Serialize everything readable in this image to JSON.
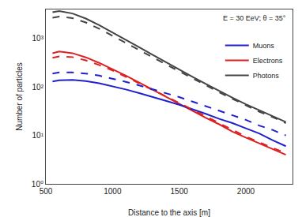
{
  "chart_data": {
    "type": "line",
    "xlabel": "Distance to the axis [m]",
    "ylabel": "Number of particles",
    "annotation": "E = 30 EeV; θ = 35°",
    "log": "y",
    "grid": false,
    "legend": "upper right",
    "xlim": [
      500,
      2350
    ],
    "xticks": [
      500,
      1000,
      1500,
      2000
    ],
    "ylim": [
      1,
      4000
    ],
    "yticks": [
      {
        "value": 1,
        "label": "10⁰"
      },
      {
        "value": 10,
        "label": "10¹"
      },
      {
        "value": 100,
        "label": "10²"
      },
      {
        "value": 1000,
        "label": "10³"
      }
    ],
    "x": [
      550,
      600,
      700,
      800,
      900,
      1000,
      1100,
      1200,
      1300,
      1400,
      1500,
      1600,
      1700,
      1800,
      1900,
      2000,
      2100,
      2200,
      2300
    ],
    "series": [
      {
        "name": "Photons",
        "color": "#444444",
        "line_style": "solid",
        "values": [
          3500,
          3700,
          3300,
          2600,
          1900,
          1350,
          950,
          665,
          465,
          325,
          230,
          163,
          116,
          83,
          60,
          44,
          33,
          25,
          19
        ]
      },
      {
        "name": "Electrons",
        "color": "#dd2020",
        "line_style": "solid",
        "values": [
          500,
          540,
          500,
          410,
          315,
          235,
          172,
          124,
          88,
          63,
          45,
          32,
          23,
          17,
          12,
          9,
          6.8,
          5.2,
          4.0
        ]
      },
      {
        "name": "Muons",
        "color": "#2020cc",
        "line_style": "solid",
        "values": [
          130,
          138,
          140,
          133,
          120,
          104,
          89,
          75,
          63,
          52,
          43,
          35,
          28,
          22,
          18,
          14,
          11,
          8,
          6.0
        ]
      },
      {
        "name": "Photons",
        "color": "#444444",
        "line_style": "dashed",
        "values": [
          2700,
          2850,
          2650,
          2150,
          1600,
          1150,
          820,
          580,
          415,
          295,
          210,
          150,
          108,
          78,
          57,
          42,
          31,
          24,
          18
        ]
      },
      {
        "name": "Electrons",
        "color": "#dd2020",
        "line_style": "dashed",
        "values": [
          400,
          430,
          415,
          355,
          285,
          220,
          163,
          120,
          88,
          64,
          47,
          34,
          25,
          18,
          13,
          9.5,
          7.2,
          5.5,
          4.3
        ]
      },
      {
        "name": "Muons",
        "color": "#2020cc",
        "line_style": "dashed",
        "values": [
          190,
          200,
          200,
          190,
          172,
          150,
          128,
          108,
          90,
          75,
          62,
          50,
          40,
          32,
          26,
          21,
          16,
          13,
          10
        ]
      }
    ]
  }
}
